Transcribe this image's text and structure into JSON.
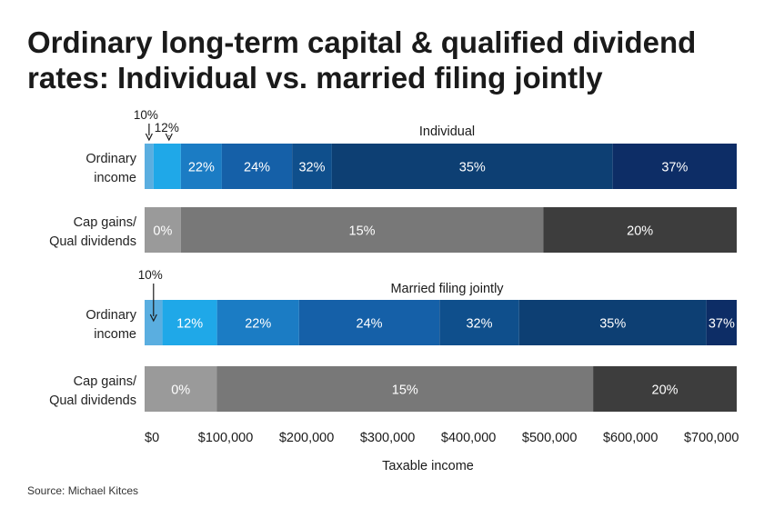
{
  "title_lines": [
    "Ordinary long-term capital & qualified dividend",
    "rates: Individual vs. married filing jointly"
  ],
  "source": "Source: Michael Kitces",
  "chart_data": {
    "type": "bar",
    "orientation": "horizontal-stacked",
    "xlabel": "Taxable income",
    "xlim": [
      0,
      731200
    ],
    "x_ticks": [
      0,
      100000,
      200000,
      300000,
      400000,
      500000,
      600000,
      700000
    ],
    "x_tick_labels": [
      "$0",
      "$100,000",
      "$200,000",
      "$300,000",
      "$400,000",
      "$500,000",
      "$600,000",
      "$700,000"
    ],
    "grid": false,
    "colors": {
      "10%": "#5aaee0",
      "12%": "#1fa8e8",
      "22%": "#1b7cc4",
      "24%": "#1560a8",
      "32%": "#0f4f8c",
      "35%": "#0d3f73",
      "37%": "#0d2d66",
      "0%": "#9a9a9a",
      "15%": "#787878",
      "20%": "#3d3d3d"
    },
    "groups": [
      {
        "label": "Individual",
        "rows": [
          {
            "label_lines": [
              "Ordinary",
              "income"
            ],
            "segments": [
              {
                "rate": "10%",
                "from": 0,
                "to": 11000,
                "label_outside": true
              },
              {
                "rate": "12%",
                "from": 11000,
                "to": 44725,
                "label_outside": true
              },
              {
                "rate": "22%",
                "from": 44725,
                "to": 95375
              },
              {
                "rate": "24%",
                "from": 95375,
                "to": 182100
              },
              {
                "rate": "32%",
                "from": 182100,
                "to": 231250
              },
              {
                "rate": "35%",
                "from": 231250,
                "to": 578125
              },
              {
                "rate": "37%",
                "from": 578125,
                "to": 731200
              }
            ]
          },
          {
            "label_lines": [
              "Cap gains/",
              "Qual dividends"
            ],
            "segments": [
              {
                "rate": "0%",
                "from": 0,
                "to": 44625
              },
              {
                "rate": "15%",
                "from": 44625,
                "to": 492300
              },
              {
                "rate": "20%",
                "from": 492300,
                "to": 731200
              }
            ]
          }
        ]
      },
      {
        "label": "Married filing jointly",
        "rows": [
          {
            "label_lines": [
              "Ordinary",
              "income"
            ],
            "segments": [
              {
                "rate": "10%",
                "from": 0,
                "to": 22000,
                "label_outside": true
              },
              {
                "rate": "12%",
                "from": 22000,
                "to": 89450
              },
              {
                "rate": "22%",
                "from": 89450,
                "to": 190750
              },
              {
                "rate": "24%",
                "from": 190750,
                "to": 364200
              },
              {
                "rate": "32%",
                "from": 364200,
                "to": 462500
              },
              {
                "rate": "35%",
                "from": 462500,
                "to": 693750
              },
              {
                "rate": "37%",
                "from": 693750,
                "to": 731200
              }
            ]
          },
          {
            "label_lines": [
              "Cap gains/",
              "Qual dividends"
            ],
            "segments": [
              {
                "rate": "0%",
                "from": 0,
                "to": 89250
              },
              {
                "rate": "15%",
                "from": 89250,
                "to": 553850
              },
              {
                "rate": "20%",
                "from": 553850,
                "to": 731200
              }
            ]
          }
        ]
      }
    ]
  }
}
